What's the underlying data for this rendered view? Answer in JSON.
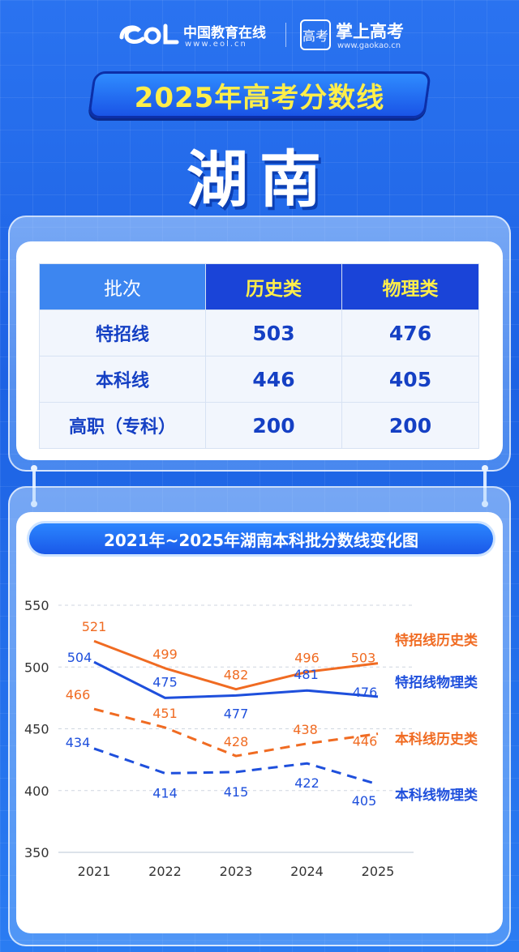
{
  "header": {
    "eol_name": "中国教育在线",
    "eol_url": "www.eol.cn",
    "gaokao_icon_text": "高考",
    "gaokao_name": "掌上高考",
    "gaokao_url": "www.gaokao.cn"
  },
  "banner_title": "2025年高考分数线",
  "province": "湖南",
  "table": {
    "headers": [
      "批次",
      "历史类",
      "物理类"
    ],
    "rows": [
      {
        "label": "特招线",
        "history": "503",
        "physics": "476"
      },
      {
        "label": "本科线",
        "history": "446",
        "physics": "405"
      },
      {
        "label": "高职（专科）",
        "history": "200",
        "physics": "200"
      }
    ]
  },
  "colors": {
    "orange": "#f06b22",
    "blue": "#1e4fdc",
    "yellow": "#ffee4a"
  },
  "chart_data": {
    "type": "line",
    "title": "2021年~2025年湖南本科批分数线变化图",
    "x": [
      "2021",
      "2022",
      "2023",
      "2024",
      "2025"
    ],
    "ylim": [
      350,
      550
    ],
    "yticks": [
      350,
      400,
      450,
      500,
      550
    ],
    "grid": true,
    "series": [
      {
        "name": "特招线历史类",
        "values": [
          521,
          499,
          482,
          496,
          503
        ],
        "color": "#f06b22",
        "dashed": false
      },
      {
        "name": "特招线物理类",
        "values": [
          504,
          475,
          477,
          481,
          476
        ],
        "color": "#1e4fdc",
        "dashed": false
      },
      {
        "name": "本科线历史类",
        "values": [
          466,
          451,
          428,
          438,
          446
        ],
        "color": "#f06b22",
        "dashed": true
      },
      {
        "name": "本科线物理类",
        "values": [
          434,
          414,
          415,
          422,
          405
        ],
        "color": "#1e4fdc",
        "dashed": true
      }
    ]
  }
}
